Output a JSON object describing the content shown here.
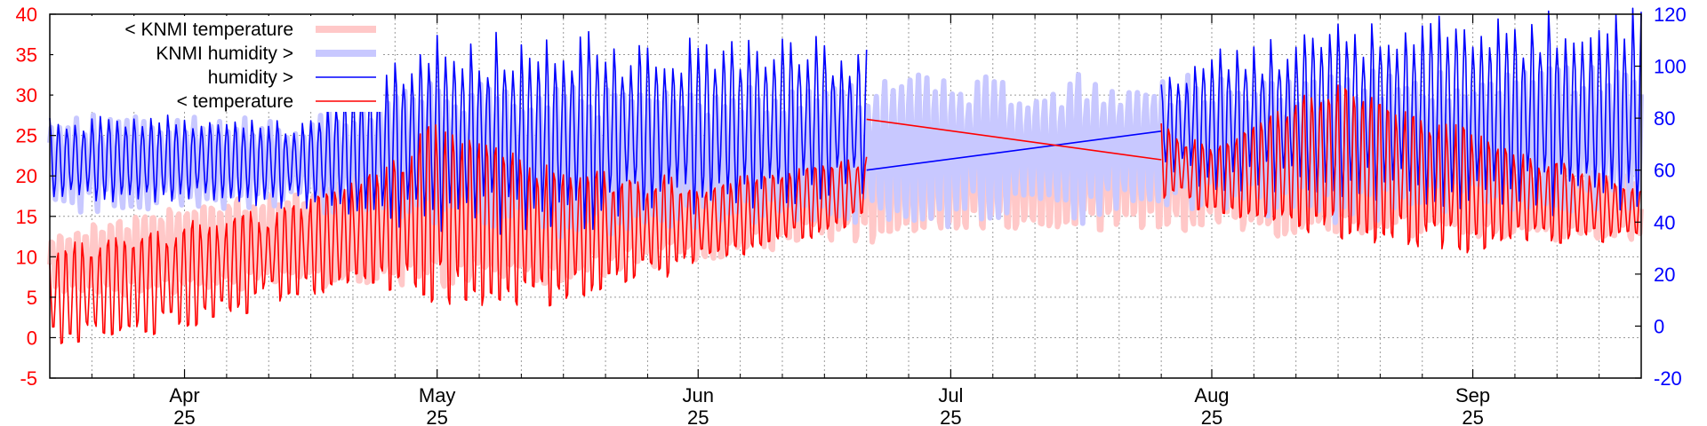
{
  "chart_data": {
    "type": "line",
    "title": "",
    "xlabel": "",
    "ylabel_left": "",
    "ylabel_right": "",
    "grid": true,
    "legend_position": "top-left",
    "x_range": [
      "2025-03-16",
      "2025-09-21"
    ],
    "y_left_range": [
      -5,
      40
    ],
    "y_right_range": [
      -20,
      120
    ],
    "y_left_ticks": [
      "40",
      "35",
      "30",
      "25",
      "20",
      "15",
      "10",
      "5",
      "0",
      "-5"
    ],
    "y_right_ticks": [
      "120",
      "100",
      "80",
      "60",
      "40",
      "20",
      "0",
      "-20"
    ],
    "x_ticks": [
      {
        "month": "Apr",
        "year": "25",
        "date": "2025-04-01"
      },
      {
        "month": "May",
        "year": "25",
        "date": "2025-05-01"
      },
      {
        "month": "Jun",
        "year": "25",
        "date": "2025-06-01"
      },
      {
        "month": "Jul",
        "year": "25",
        "date": "2025-07-01"
      },
      {
        "month": "Aug",
        "year": "25",
        "date": "2025-08-01"
      },
      {
        "month": "Sep",
        "year": "25",
        "date": "2025-09-01"
      }
    ],
    "legend": [
      {
        "label": "< KNMI temperature",
        "color": "#ffc8c8",
        "width": 8
      },
      {
        "label": "KNMI humidity >",
        "color": "#c8c8ff",
        "width": 8
      },
      {
        "label": "humidity >",
        "color": "#0000ff",
        "width": 1.5
      },
      {
        "label": "< temperature",
        "color": "#ff0000",
        "width": 1.5
      }
    ],
    "series": [
      {
        "name": "< KNMI temperature",
        "axis": "left",
        "color": "#ffc8c8",
        "pattern": "daily cycle",
        "segments": [
          {
            "x": [
              "2025-03-16",
              "2025-04-01",
              "2025-04-15",
              "2025-05-01",
              "2025-05-15",
              "2025-06-01",
              "2025-06-15",
              "2025-07-01",
              "2025-07-15",
              "2025-08-01",
              "2025-08-15",
              "2025-09-01",
              "2025-09-21"
            ],
            "low": [
              5,
              5,
              6,
              5,
              6,
              9,
              11,
              12,
              13,
              12,
              12,
              11,
              12
            ],
            "high": [
              13,
              17,
              19,
              24,
              22,
              22,
              26,
              27,
              26,
              27,
              29,
              23,
              20
            ]
          }
        ]
      },
      {
        "name": "KNMI humidity >",
        "axis": "right",
        "color": "#c8c8ff",
        "pattern": "daily cycle",
        "segments": [
          {
            "x": [
              "2025-03-16",
              "2025-04-01",
              "2025-04-15",
              "2025-05-01",
              "2025-05-15",
              "2025-06-01",
              "2025-06-15",
              "2025-07-01",
              "2025-07-15",
              "2025-08-01",
              "2025-08-15",
              "2025-09-01",
              "2025-09-21"
            ],
            "low": [
              45,
              45,
              45,
              40,
              35,
              38,
              40,
              38,
              40,
              45,
              42,
              45,
              45
            ],
            "high": [
              80,
              80,
              80,
              95,
              92,
              90,
              92,
              98,
              95,
              95,
              95,
              98,
              100
            ]
          }
        ]
      },
      {
        "name": "humidity >",
        "axis": "right",
        "color": "#0000ff",
        "pattern": "daily cycle",
        "segments": [
          {
            "x": [
              "2025-03-16",
              "2025-04-01",
              "2025-04-15",
              "2025-05-01",
              "2025-05-15",
              "2025-06-01",
              "2025-06-15",
              "2025-06-21"
            ],
            "low": [
              48,
              48,
              45,
              38,
              36,
              45,
              48,
              50
            ],
            "high": [
              80,
              80,
              80,
              110,
              112,
              110,
              110,
              105
            ]
          },
          {
            "x": [
              "2025-06-21",
              "2025-07-26"
            ],
            "low": [
              60,
              75
            ],
            "high": [
              60,
              75
            ],
            "style": "straight"
          },
          {
            "x": [
              "2025-07-26",
              "2025-08-01",
              "2025-08-15",
              "2025-09-01",
              "2025-09-21"
            ],
            "low": [
              55,
              52,
              50,
              45,
              45
            ],
            "high": [
              100,
              105,
              115,
              118,
              120
            ]
          }
        ]
      },
      {
        "name": "< temperature",
        "axis": "left",
        "color": "#ff0000",
        "pattern": "daily cycle",
        "segments": [
          {
            "x": [
              "2025-03-16",
              "2025-04-01",
              "2025-04-15",
              "2025-05-01",
              "2025-05-15",
              "2025-06-01",
              "2025-06-15",
              "2025-06-21"
            ],
            "low": [
              -2,
              0,
              5,
              3,
              3,
              8,
              12,
              14
            ],
            "high": [
              12,
              15,
              17,
              28,
              22,
              20,
              22,
              23
            ]
          },
          {
            "x": [
              "2025-06-21",
              "2025-07-26"
            ],
            "low": [
              27,
              22
            ],
            "high": [
              27,
              22
            ],
            "style": "straight"
          },
          {
            "x": [
              "2025-07-26",
              "2025-08-01",
              "2025-08-15",
              "2025-09-01",
              "2025-09-21"
            ],
            "low": [
              17,
              15,
              11,
              10,
              12
            ],
            "high": [
              27,
              24,
              33,
              26,
              19
            ]
          }
        ]
      }
    ]
  }
}
